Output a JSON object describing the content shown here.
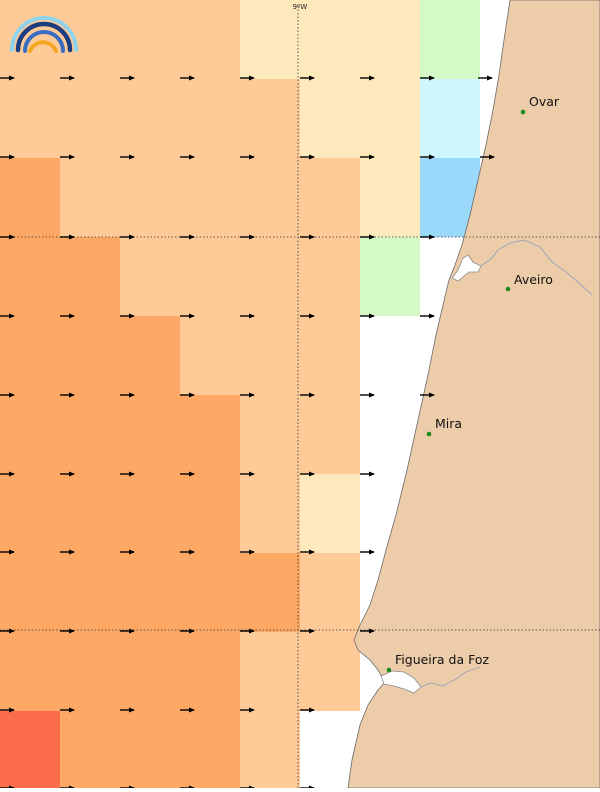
{
  "map": {
    "longitude_label": "9ºW",
    "logo_icon": "rainbow-logo-icon",
    "cell_colors": {
      "pale_yellow": "#fee9bd",
      "light_orange": "#fecb98",
      "orange": "#fda965",
      "deep_orange": "#fb6d4d",
      "light_green": "#d4f8c6",
      "pale_cyan": "#cdf6fe",
      "light_blue": "#9bd9fb"
    },
    "land_color": "#edcca9",
    "sea_color": "#ffffff",
    "river_color": "#9aa3be",
    "city_dot_color": "#1e8a1e",
    "wind_arrow_icon": "east-arrow-icon",
    "places": [
      {
        "name": "Ovar"
      },
      {
        "name": "Aveiro"
      },
      {
        "name": "Mira"
      },
      {
        "name": "Figueira da Foz"
      }
    ]
  }
}
